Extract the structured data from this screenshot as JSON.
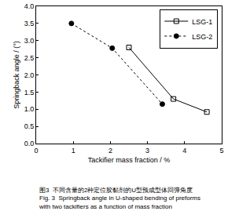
{
  "chart_data": {
    "type": "line",
    "x_label": "Tackifier mass fraction / %",
    "y_label": "Springback angle / (°)",
    "caption": [
      "图3  不同含量的2种定位胶黏剂的U型预成型体回弹角度",
      "Fig. 3  Springback angle in U-shaped bending of preforms",
      "with two tackifiers as a function of mass fraction"
    ],
    "series": [
      {
        "name": "LSG-1",
        "color": "#000000",
        "marker": "square-open",
        "line_style": "solid",
        "x": [
          2.5,
          3.7,
          4.6
        ],
        "values": [
          2.8,
          1.3,
          0.92
        ]
      },
      {
        "name": "LSG-2",
        "color": "#000000",
        "marker": "circle",
        "line_style": "dot",
        "x": [
          0.95,
          2.05,
          3.4
        ],
        "values": [
          3.5,
          2.78,
          1.15
        ]
      }
    ],
    "xlim": [
      0,
      5
    ],
    "xticks": [
      0,
      1,
      2,
      3,
      4,
      5
    ],
    "ylim": [
      0,
      4
    ],
    "yticks": [
      {
        "value": 0,
        "label": "0.0"
      },
      {
        "value": 0.5,
        "label": "0.5"
      },
      {
        "value": 1,
        "label": "1.0"
      },
      {
        "value": 1.5,
        "label": "1.5"
      },
      {
        "value": 2,
        "label": "2.0"
      },
      {
        "value": 2.5,
        "label": "2.5"
      },
      {
        "value": 3,
        "label": "3.0"
      },
      {
        "value": 3.5,
        "label": "3.5"
      },
      {
        "value": 4,
        "label": "4.0"
      }
    ],
    "grid": false,
    "legend": "top-right"
  }
}
